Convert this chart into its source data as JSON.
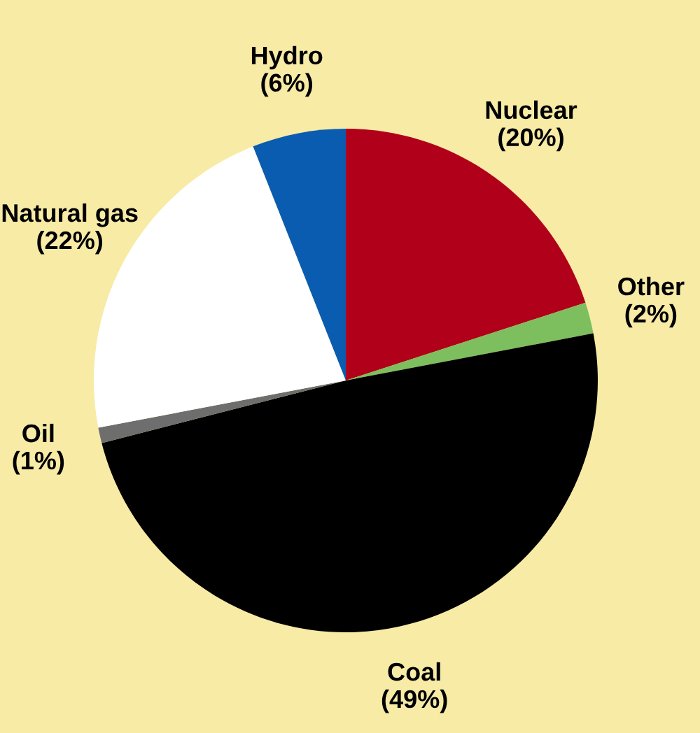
{
  "chart_data": {
    "type": "pie",
    "categories": [
      "Nuclear",
      "Other",
      "Coal",
      "Oil",
      "Natural gas",
      "Hydro"
    ],
    "values": [
      20,
      2,
      49,
      1,
      22,
      6
    ],
    "value_labels": [
      "(20%)",
      "(2%)",
      "(49%)",
      "(1%)",
      "(22%)",
      "(6%)"
    ],
    "colors": [
      "#b0001a",
      "#7dbf5e",
      "#000000",
      "#6e6e6e",
      "#ffffff",
      "#0a5cb0"
    ],
    "legend": false
  }
}
